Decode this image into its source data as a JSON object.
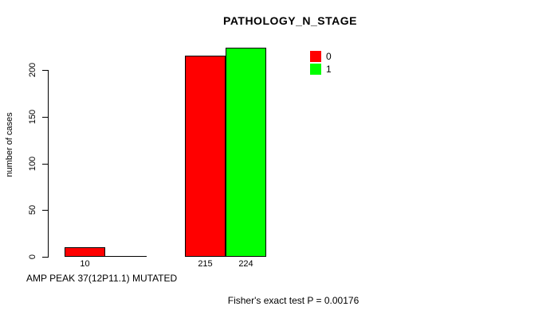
{
  "chart_data": {
    "type": "bar",
    "title": "PATHOLOGY_N_STAGE",
    "ylabel": "number of cases",
    "xlabel": "AMP PEAK 37(12P11.1) MUTATED",
    "annotation": "Fisher's exact test P = 0.00176",
    "yticks": [
      0,
      50,
      100,
      150,
      200
    ],
    "ylim": [
      0,
      230
    ],
    "grid": false,
    "legend_position": "top-right-inside",
    "categories": [
      "group-1",
      "group-2"
    ],
    "series": [
      {
        "name": "0",
        "color": "#FF0000",
        "values": [
          10,
          215
        ],
        "value_labels": [
          "10",
          "215"
        ]
      },
      {
        "name": "1",
        "color": "#00FF00",
        "values": [
          0,
          224
        ],
        "value_labels": [
          "",
          "224"
        ]
      }
    ]
  },
  "colors": {
    "background": "#FFFFFF",
    "axis": "#000000",
    "bar_border": "#000000",
    "text": "#000000",
    "series_0": "#FF0000",
    "series_1": "#00FF00"
  }
}
